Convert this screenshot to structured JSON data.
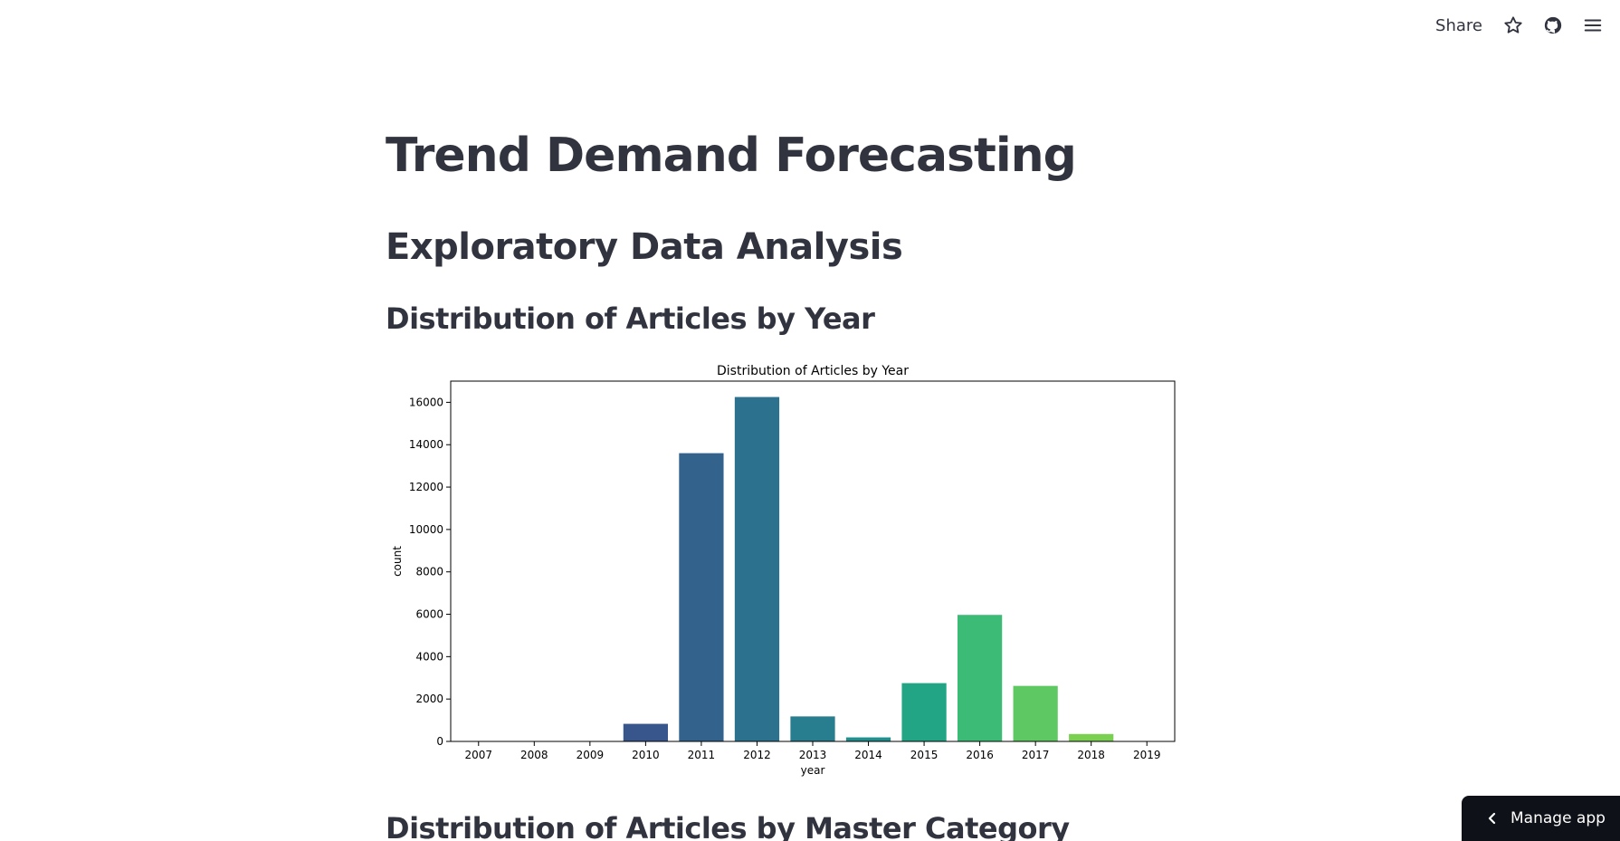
{
  "header": {
    "share_label": "Share",
    "icons": [
      "star-icon",
      "github-icon",
      "menu-icon"
    ]
  },
  "main": {
    "title": "Trend Demand Forecasting",
    "section": "Exploratory Data Analysis",
    "subheader_1": "Distribution of Articles by Year",
    "subheader_2": "Distribution of Articles by Master Category"
  },
  "manage_app": {
    "label": "Manage app"
  },
  "chart_data": {
    "type": "bar",
    "title": "Distribution of Articles by Year",
    "xlabel": "year",
    "ylabel": "count",
    "categories": [
      "2007",
      "2008",
      "2009",
      "2010",
      "2011",
      "2012",
      "2013",
      "2014",
      "2015",
      "2016",
      "2017",
      "2018",
      "2019"
    ],
    "values": [
      2,
      5,
      8,
      830,
      13600,
      16250,
      1180,
      190,
      2750,
      5970,
      2620,
      350,
      10
    ],
    "colors": [
      "#472c7a",
      "#3f4788",
      "#3b528b",
      "#39568c",
      "#33638d",
      "#2c728e",
      "#287d8e",
      "#218f8d",
      "#21a585",
      "#3bbb75",
      "#5ec962",
      "#7ad151",
      "#a5db36"
    ],
    "yticks": [
      "0",
      "2000",
      "4000",
      "6000",
      "8000",
      "10000",
      "12000",
      "14000",
      "16000"
    ],
    "ylim": [
      0,
      17000
    ],
    "grid": false,
    "legend": false
  }
}
